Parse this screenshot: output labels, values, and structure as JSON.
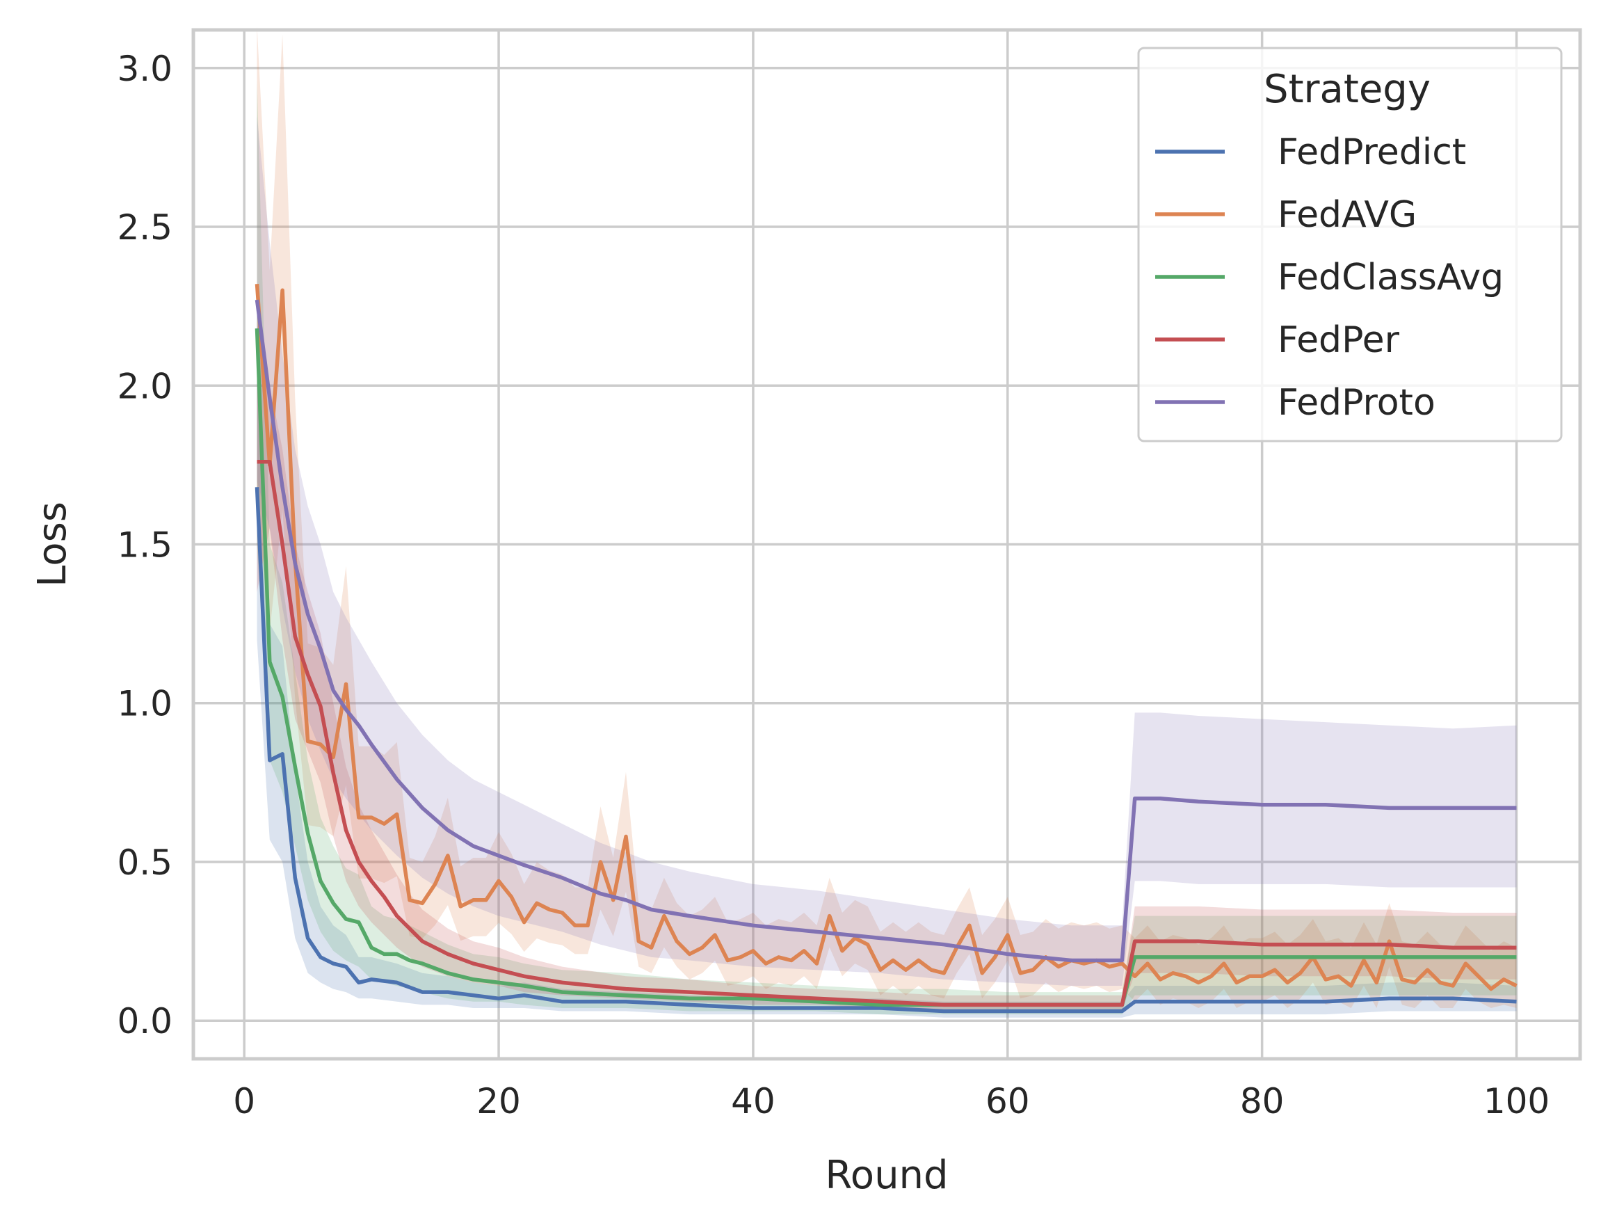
{
  "chart_data": {
    "type": "line",
    "xlabel": "Round",
    "ylabel": "Loss",
    "xlim": [
      -4,
      105
    ],
    "ylim": [
      -0.12,
      3.12
    ],
    "xticks": [
      0,
      20,
      40,
      60,
      80,
      100
    ],
    "yticks": [
      0.0,
      0.5,
      1.0,
      1.5,
      2.0,
      2.5,
      3.0
    ],
    "xtick_labels": [
      "0",
      "20",
      "40",
      "60",
      "80",
      "100"
    ],
    "ytick_labels": [
      "0.0",
      "0.5",
      "1.0",
      "1.5",
      "2.0",
      "2.5",
      "3.0"
    ],
    "grid": true,
    "legend": {
      "title": "Strategy",
      "placement": "top-right"
    },
    "series": [
      {
        "name": "FedPredict",
        "color": "#4c72b0",
        "x": [
          1,
          2,
          3,
          4,
          5,
          6,
          7,
          8,
          9,
          10,
          12,
          14,
          16,
          18,
          20,
          22,
          25,
          30,
          35,
          40,
          45,
          50,
          55,
          60,
          65,
          69,
          70,
          75,
          80,
          85,
          90,
          95,
          100
        ],
        "y": [
          1.68,
          0.82,
          0.84,
          0.45,
          0.26,
          0.2,
          0.18,
          0.17,
          0.12,
          0.13,
          0.12,
          0.09,
          0.09,
          0.08,
          0.07,
          0.08,
          0.06,
          0.06,
          0.05,
          0.04,
          0.04,
          0.04,
          0.03,
          0.03,
          0.03,
          0.03,
          0.06,
          0.06,
          0.06,
          0.06,
          0.07,
          0.07,
          0.06
        ],
        "lower": [
          1.2,
          0.57,
          0.5,
          0.26,
          0.15,
          0.12,
          0.1,
          0.09,
          0.07,
          0.07,
          0.06,
          0.05,
          0.05,
          0.04,
          0.04,
          0.04,
          0.03,
          0.03,
          0.02,
          0.02,
          0.02,
          0.02,
          0.01,
          0.01,
          0.01,
          0.01,
          0.02,
          0.02,
          0.02,
          0.02,
          0.03,
          0.03,
          0.03
        ],
        "upper": [
          2.25,
          1.25,
          1.18,
          0.78,
          0.5,
          0.36,
          0.3,
          0.27,
          0.2,
          0.2,
          0.18,
          0.15,
          0.14,
          0.12,
          0.11,
          0.12,
          0.1,
          0.09,
          0.08,
          0.07,
          0.07,
          0.07,
          0.06,
          0.06,
          0.06,
          0.06,
          0.11,
          0.11,
          0.11,
          0.11,
          0.12,
          0.12,
          0.11
        ]
      },
      {
        "name": "FedAVG",
        "color": "#dd8452",
        "x": [
          1,
          2,
          3,
          4,
          5,
          6,
          7,
          8,
          9,
          10,
          11,
          12,
          13,
          14,
          15,
          16,
          17,
          18,
          19,
          20,
          21,
          22,
          23,
          24,
          25,
          26,
          27,
          28,
          29,
          30,
          31,
          32,
          33,
          34,
          35,
          36,
          37,
          38,
          39,
          40,
          41,
          42,
          43,
          44,
          45,
          46,
          47,
          48,
          49,
          50,
          51,
          52,
          53,
          54,
          55,
          56,
          57,
          58,
          59,
          60,
          61,
          62,
          63,
          64,
          65,
          66,
          67,
          68,
          69,
          70,
          71,
          72,
          73,
          74,
          75,
          76,
          77,
          78,
          79,
          80,
          81,
          82,
          83,
          84,
          85,
          86,
          87,
          88,
          89,
          90,
          91,
          92,
          93,
          94,
          95,
          96,
          97,
          98,
          99,
          100
        ],
        "y": [
          2.32,
          1.75,
          2.3,
          1.45,
          0.88,
          0.87,
          0.83,
          1.06,
          0.64,
          0.64,
          0.62,
          0.65,
          0.38,
          0.37,
          0.43,
          0.52,
          0.36,
          0.38,
          0.38,
          0.44,
          0.39,
          0.31,
          0.37,
          0.35,
          0.34,
          0.3,
          0.3,
          0.5,
          0.38,
          0.58,
          0.25,
          0.23,
          0.33,
          0.25,
          0.21,
          0.23,
          0.27,
          0.19,
          0.2,
          0.22,
          0.18,
          0.2,
          0.19,
          0.22,
          0.18,
          0.33,
          0.22,
          0.26,
          0.24,
          0.16,
          0.19,
          0.16,
          0.19,
          0.16,
          0.15,
          0.23,
          0.3,
          0.15,
          0.2,
          0.27,
          0.15,
          0.16,
          0.2,
          0.17,
          0.19,
          0.18,
          0.19,
          0.17,
          0.18,
          0.14,
          0.18,
          0.13,
          0.15,
          0.14,
          0.12,
          0.14,
          0.18,
          0.12,
          0.14,
          0.14,
          0.16,
          0.12,
          0.15,
          0.2,
          0.13,
          0.14,
          0.11,
          0.19,
          0.12,
          0.25,
          0.13,
          0.12,
          0.16,
          0.12,
          0.11,
          0.18,
          0.14,
          0.1,
          0.13,
          0.11
        ]
      },
      {
        "name": "FedClassAvg",
        "color": "#55a868",
        "x": [
          1,
          2,
          3,
          4,
          5,
          6,
          7,
          8,
          9,
          10,
          11,
          12,
          13,
          14,
          16,
          18,
          20,
          22,
          25,
          30,
          35,
          40,
          45,
          50,
          55,
          60,
          65,
          69,
          70,
          75,
          80,
          85,
          90,
          95,
          100
        ],
        "y": [
          2.18,
          1.13,
          1.02,
          0.8,
          0.59,
          0.44,
          0.37,
          0.32,
          0.31,
          0.23,
          0.21,
          0.21,
          0.19,
          0.18,
          0.15,
          0.13,
          0.12,
          0.11,
          0.09,
          0.08,
          0.07,
          0.07,
          0.06,
          0.05,
          0.05,
          0.05,
          0.05,
          0.05,
          0.2,
          0.2,
          0.2,
          0.2,
          0.2,
          0.2,
          0.2
        ],
        "lower": [
          1.5,
          0.82,
          0.72,
          0.55,
          0.38,
          0.28,
          0.22,
          0.19,
          0.17,
          0.13,
          0.12,
          0.11,
          0.1,
          0.09,
          0.07,
          0.06,
          0.06,
          0.05,
          0.04,
          0.04,
          0.03,
          0.03,
          0.03,
          0.02,
          0.02,
          0.02,
          0.02,
          0.02,
          0.08,
          0.08,
          0.08,
          0.08,
          0.08,
          0.08,
          0.08
        ],
        "upper": [
          2.96,
          1.5,
          1.38,
          1.1,
          0.82,
          0.64,
          0.55,
          0.48,
          0.46,
          0.36,
          0.33,
          0.32,
          0.3,
          0.28,
          0.24,
          0.21,
          0.2,
          0.18,
          0.16,
          0.15,
          0.13,
          0.12,
          0.11,
          0.1,
          0.1,
          0.09,
          0.09,
          0.09,
          0.33,
          0.33,
          0.33,
          0.33,
          0.33,
          0.33,
          0.33
        ]
      },
      {
        "name": "FedPer",
        "color": "#c44e52",
        "x": [
          1,
          2,
          3,
          4,
          5,
          6,
          7,
          8,
          9,
          10,
          11,
          12,
          13,
          14,
          16,
          18,
          20,
          22,
          25,
          30,
          35,
          40,
          45,
          50,
          55,
          60,
          65,
          69,
          70,
          75,
          80,
          85,
          90,
          95,
          100
        ],
        "y": [
          1.76,
          1.76,
          1.5,
          1.21,
          1.09,
          0.99,
          0.78,
          0.6,
          0.5,
          0.44,
          0.39,
          0.33,
          0.29,
          0.25,
          0.21,
          0.18,
          0.16,
          0.14,
          0.12,
          0.1,
          0.09,
          0.08,
          0.07,
          0.06,
          0.05,
          0.05,
          0.05,
          0.05,
          0.25,
          0.25,
          0.24,
          0.24,
          0.24,
          0.23,
          0.23
        ],
        "lower": [
          1.35,
          1.55,
          1.2,
          0.95,
          0.85,
          0.75,
          0.58,
          0.44,
          0.36,
          0.31,
          0.27,
          0.23,
          0.2,
          0.17,
          0.14,
          0.12,
          0.11,
          0.09,
          0.08,
          0.07,
          0.06,
          0.05,
          0.05,
          0.04,
          0.03,
          0.03,
          0.03,
          0.03,
          0.15,
          0.15,
          0.14,
          0.14,
          0.14,
          0.13,
          0.13
        ],
        "upper": [
          2.2,
          2.0,
          1.8,
          1.5,
          1.35,
          1.22,
          1.0,
          0.8,
          0.68,
          0.6,
          0.53,
          0.46,
          0.4,
          0.35,
          0.29,
          0.25,
          0.23,
          0.2,
          0.17,
          0.14,
          0.13,
          0.11,
          0.1,
          0.09,
          0.08,
          0.08,
          0.08,
          0.08,
          0.36,
          0.36,
          0.35,
          0.35,
          0.35,
          0.34,
          0.34
        ]
      },
      {
        "name": "FedProto",
        "color": "#8172b3",
        "x": [
          1,
          2,
          3,
          4,
          5,
          6,
          7,
          8,
          9,
          10,
          12,
          14,
          16,
          18,
          20,
          22,
          25,
          28,
          30,
          32,
          35,
          40,
          45,
          50,
          55,
          60,
          65,
          69,
          70,
          72,
          75,
          80,
          85,
          90,
          95,
          100
        ],
        "y": [
          2.27,
          1.96,
          1.68,
          1.44,
          1.28,
          1.17,
          1.04,
          0.98,
          0.93,
          0.87,
          0.76,
          0.67,
          0.6,
          0.55,
          0.52,
          0.49,
          0.45,
          0.4,
          0.38,
          0.35,
          0.33,
          0.3,
          0.28,
          0.26,
          0.24,
          0.21,
          0.19,
          0.19,
          0.7,
          0.7,
          0.69,
          0.68,
          0.68,
          0.67,
          0.67,
          0.67
        ],
        "lower": [
          1.7,
          1.55,
          1.3,
          1.1,
          0.95,
          0.85,
          0.76,
          0.7,
          0.65,
          0.6,
          0.52,
          0.45,
          0.4,
          0.36,
          0.33,
          0.31,
          0.28,
          0.24,
          0.22,
          0.2,
          0.19,
          0.17,
          0.16,
          0.15,
          0.13,
          0.12,
          0.11,
          0.11,
          0.44,
          0.44,
          0.43,
          0.43,
          0.43,
          0.42,
          0.42,
          0.42
        ],
        "upper": [
          2.85,
          2.45,
          2.1,
          1.8,
          1.62,
          1.5,
          1.35,
          1.27,
          1.2,
          1.13,
          1.0,
          0.9,
          0.82,
          0.76,
          0.72,
          0.68,
          0.62,
          0.56,
          0.53,
          0.5,
          0.47,
          0.43,
          0.41,
          0.38,
          0.35,
          0.32,
          0.3,
          0.3,
          0.97,
          0.97,
          0.96,
          0.95,
          0.94,
          0.93,
          0.92,
          0.93
        ]
      }
    ]
  }
}
